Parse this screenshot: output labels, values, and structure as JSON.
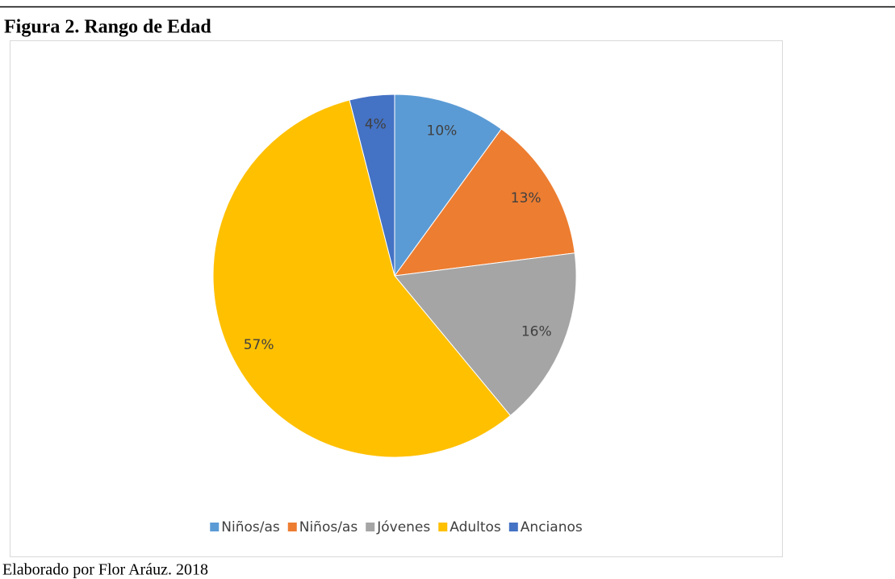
{
  "chart_data": {
    "type": "pie",
    "title": "Figura 2. Rango de Edad",
    "categories": [
      "Niños/as",
      "Niños/as",
      "Jóvenes",
      "Adultos",
      "Ancianos"
    ],
    "values": [
      10,
      13,
      16,
      57,
      4
    ],
    "value_labels": [
      "10%",
      "13%",
      "16%",
      "57%",
      "4%"
    ],
    "colors": [
      "#5b9bd5",
      "#ed7d31",
      "#a5a5a5",
      "#ffc000",
      "#4472c4"
    ],
    "legend": "bottom",
    "caption": "Elaborado por Flor Aráuz. 2018"
  }
}
